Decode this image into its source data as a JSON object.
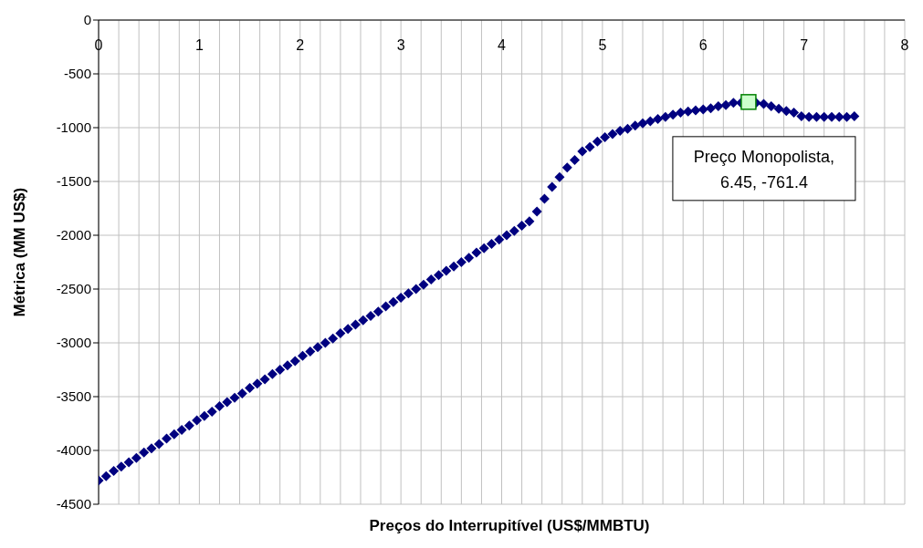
{
  "chart_data": {
    "type": "scatter",
    "xlabel": "Preços do Interrupitível (US$/MMBTU)",
    "ylabel": "Métrica (MM US$)",
    "xlim": [
      0,
      8
    ],
    "ylim": [
      -4500,
      0
    ],
    "xticks": [
      0,
      {
        "value": 0.2,
        "label": null
      },
      {
        "value": 0.4,
        "label": null
      },
      {
        "value": 0.6,
        "label": null
      },
      {
        "value": 0.8,
        "label": null
      },
      1,
      {
        "value": 1.2,
        "label": null
      },
      {
        "value": 1.4,
        "label": null
      },
      {
        "value": 1.6,
        "label": null
      },
      {
        "value": 1.8,
        "label": null
      },
      2,
      {
        "value": 2.2,
        "label": null
      },
      {
        "value": 2.4,
        "label": null
      },
      {
        "value": 2.6,
        "label": null
      },
      {
        "value": 2.8,
        "label": null
      },
      3,
      {
        "value": 3.2,
        "label": null
      },
      {
        "value": 3.4,
        "label": null
      },
      {
        "value": 3.6,
        "label": null
      },
      {
        "value": 3.8,
        "label": null
      },
      4,
      {
        "value": 4.2,
        "label": null
      },
      {
        "value": 4.4,
        "label": null
      },
      {
        "value": 4.6,
        "label": null
      },
      {
        "value": 4.8,
        "label": null
      },
      5,
      {
        "value": 5.2,
        "label": null
      },
      {
        "value": 5.4,
        "label": null
      },
      {
        "value": 5.6,
        "label": null
      },
      {
        "value": 5.8,
        "label": null
      },
      6,
      {
        "value": 6.2,
        "label": null
      },
      {
        "value": 6.4,
        "label": null
      },
      {
        "value": 6.6,
        "label": null
      },
      {
        "value": 6.8,
        "label": null
      },
      7,
      {
        "value": 7.2,
        "label": null
      },
      {
        "value": 7.4,
        "label": null
      },
      {
        "value": 7.6,
        "label": null
      },
      {
        "value": 7.8,
        "label": null
      },
      8
    ],
    "yticks": [
      0,
      -500,
      -1000,
      -1500,
      -2000,
      -2500,
      -3000,
      -3500,
      -4000,
      -4500
    ],
    "grid": true,
    "series": [
      {
        "marker": "diamond",
        "color": "#000080",
        "x": [
          0,
          0.075,
          0.15,
          0.225,
          0.3,
          0.375,
          0.45,
          0.525,
          0.6,
          0.675,
          0.75,
          0.825,
          0.9,
          0.975,
          1.05,
          1.125,
          1.2,
          1.275,
          1.35,
          1.425,
          1.5,
          1.575,
          1.65,
          1.725,
          1.8,
          1.875,
          1.95,
          2.025,
          2.1,
          2.175,
          2.25,
          2.325,
          2.4,
          2.475,
          2.55,
          2.625,
          2.7,
          2.775,
          2.85,
          2.925,
          3,
          3.075,
          3.15,
          3.225,
          3.3,
          3.375,
          3.45,
          3.525,
          3.6,
          3.675,
          3.75,
          3.825,
          3.9,
          3.975,
          4.05,
          4.125,
          4.2,
          4.275,
          4.35,
          4.425,
          4.5,
          4.575,
          4.65,
          4.725,
          4.8,
          4.875,
          4.95,
          5.025,
          5.1,
          5.175,
          5.25,
          5.325,
          5.4,
          5.475,
          5.55,
          5.625,
          5.7,
          5.775,
          5.85,
          5.925,
          6,
          6.075,
          6.15,
          6.225,
          6.3,
          6.375,
          6.45,
          6.525,
          6.6,
          6.675,
          6.75,
          6.825,
          6.9,
          6.975,
          7.05,
          7.125,
          7.2,
          7.275,
          7.35,
          7.425,
          7.5
        ],
        "values": [
          -4280,
          -4240,
          -4190,
          -4150,
          -4110,
          -4070,
          -4020,
          -3980,
          -3940,
          -3890,
          -3850,
          -3810,
          -3770,
          -3720,
          -3680,
          -3640,
          -3590,
          -3550,
          -3510,
          -3470,
          -3420,
          -3380,
          -3340,
          -3290,
          -3250,
          -3210,
          -3170,
          -3120,
          -3080,
          -3040,
          -3000,
          -2960,
          -2910,
          -2870,
          -2830,
          -2790,
          -2750,
          -2710,
          -2660,
          -2620,
          -2580,
          -2540,
          -2500,
          -2460,
          -2410,
          -2370,
          -2330,
          -2290,
          -2250,
          -2210,
          -2160,
          -2120,
          -2080,
          -2040,
          -2000,
          -1960,
          -1910,
          -1870,
          -1780,
          -1660,
          -1550,
          -1460,
          -1370,
          -1300,
          -1220,
          -1180,
          -1130,
          -1090,
          -1060,
          -1030,
          -1010,
          -980,
          -960,
          -940,
          -920,
          -900,
          -880,
          -860,
          -850,
          -840,
          -830,
          -820,
          -800,
          -790,
          -770,
          -770,
          null,
          -770,
          -780,
          -800,
          -825,
          -845,
          -860,
          -895,
          -900,
          -900,
          -900,
          -900,
          -900,
          -900,
          -895
        ]
      },
      {
        "marker": "square",
        "color": "#ccffcc",
        "x": [
          6.45
        ],
        "values": [
          -761.4
        ]
      }
    ],
    "annotations": [
      {
        "text": "Preço Monopolista,\n6.45, -761.4",
        "x": 6.45,
        "y": -761.4
      }
    ]
  }
}
